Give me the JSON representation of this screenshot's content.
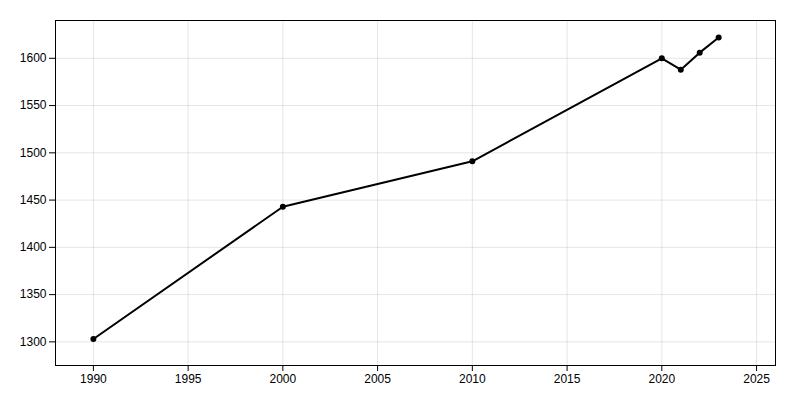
{
  "chart_data": {
    "type": "line",
    "x": [
      1990,
      2000,
      2010,
      2020,
      2021,
      2022,
      2023
    ],
    "values": [
      1303,
      1443,
      1491,
      1600,
      1588,
      1606,
      1622
    ],
    "xlim": [
      1988,
      2026
    ],
    "ylim": [
      1275,
      1640
    ],
    "xticks": [
      1990,
      1995,
      2000,
      2005,
      2010,
      2015,
      2020,
      2025
    ],
    "yticks": [
      1300,
      1350,
      1400,
      1450,
      1500,
      1550,
      1600
    ],
    "grid": true,
    "marker": "circle"
  }
}
